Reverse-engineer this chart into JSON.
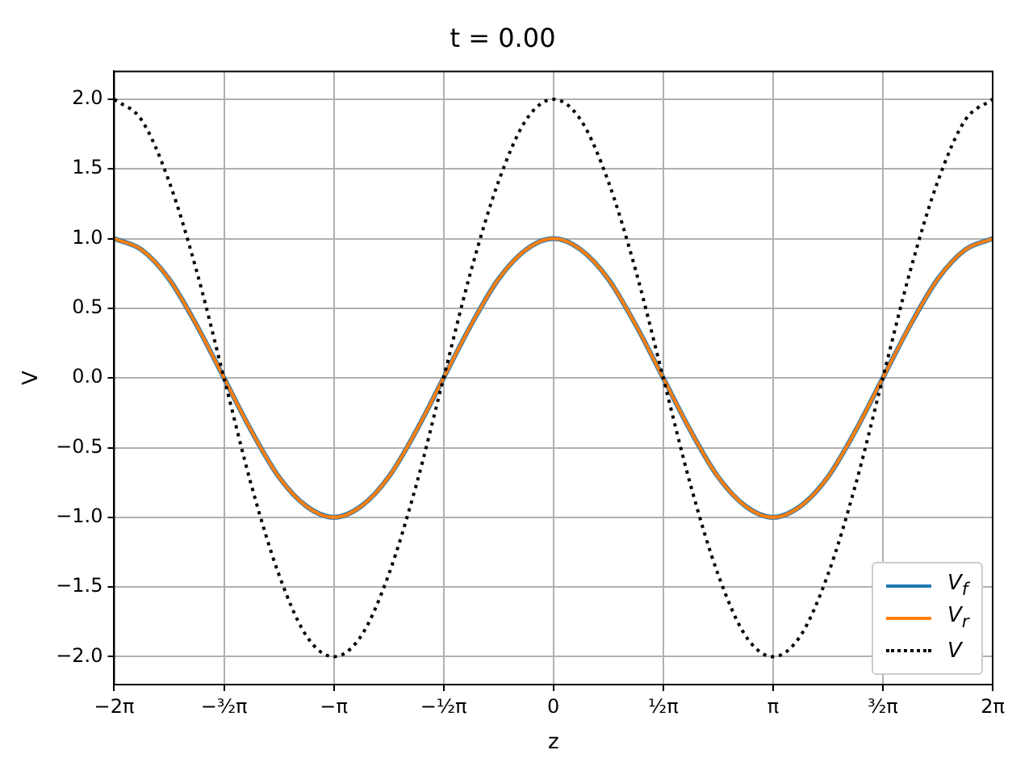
{
  "chart_data": {
    "type": "line",
    "title": "t = 0.00",
    "xlabel": "z",
    "ylabel": "V",
    "x": [
      -6.283,
      -5.89,
      -5.498,
      -5.105,
      -4.712,
      -4.32,
      -3.927,
      -3.534,
      -3.142,
      -2.749,
      -2.356,
      -1.963,
      -1.571,
      -1.178,
      -0.785,
      -0.393,
      0,
      0.393,
      0.785,
      1.178,
      1.571,
      1.963,
      2.356,
      2.749,
      3.142,
      3.534,
      3.927,
      4.32,
      4.712,
      5.105,
      5.498,
      5.89,
      6.283
    ],
    "series": [
      {
        "name": "V$_{f}$",
        "color": "#1f77b4",
        "line_style": "solid",
        "values": [
          1,
          0.92,
          0.71,
          0.38,
          0,
          -0.38,
          -0.71,
          -0.92,
          -1,
          -0.92,
          -0.71,
          -0.38,
          0,
          0.38,
          0.71,
          0.92,
          1,
          0.92,
          0.71,
          0.38,
          0,
          -0.38,
          -0.71,
          -0.92,
          -1,
          -0.92,
          -0.71,
          -0.38,
          0,
          0.38,
          0.71,
          0.92,
          1
        ]
      },
      {
        "name": "V$_{r}$",
        "color": "#ff7f0e",
        "line_style": "solid",
        "values": [
          1,
          0.92,
          0.71,
          0.38,
          0,
          -0.38,
          -0.71,
          -0.92,
          -1,
          -0.92,
          -0.71,
          -0.38,
          0,
          0.38,
          0.71,
          0.92,
          1,
          0.92,
          0.71,
          0.38,
          0,
          -0.38,
          -0.71,
          -0.92,
          -1,
          -0.92,
          -0.71,
          -0.38,
          0,
          0.38,
          0.71,
          0.92,
          1
        ]
      },
      {
        "name": "V",
        "color": "#000000",
        "line_style": "dotted",
        "values": [
          2,
          1.85,
          1.41,
          0.77,
          0,
          -0.77,
          -1.41,
          -1.85,
          -2,
          -1.85,
          -1.41,
          -0.77,
          0,
          0.77,
          1.41,
          1.85,
          2,
          1.85,
          1.41,
          0.77,
          0,
          -0.77,
          -1.41,
          -1.85,
          -2,
          -1.85,
          -1.41,
          -0.77,
          0,
          0.77,
          1.41,
          1.85,
          2
        ]
      }
    ],
    "xlim": [
      -6.283,
      6.283
    ],
    "xticks": [
      {
        "value": -6.283,
        "label": "−2π"
      },
      {
        "value": -4.712,
        "label": "−³⁄₂π"
      },
      {
        "value": -3.142,
        "label": "−π"
      },
      {
        "value": -1.571,
        "label": "−¹⁄₂π"
      },
      {
        "value": 0,
        "label": "0"
      },
      {
        "value": 1.571,
        "label": "¹⁄₂π"
      },
      {
        "value": 3.142,
        "label": "π"
      },
      {
        "value": 4.712,
        "label": "³⁄₂π"
      },
      {
        "value": 6.283,
        "label": "2π"
      }
    ],
    "ylim": [
      -2.2,
      2.2
    ],
    "yticks": [
      {
        "value": -2,
        "label": "−2.0"
      },
      {
        "value": -1.5,
        "label": "−1.5"
      },
      {
        "value": -1,
        "label": "−1.0"
      },
      {
        "value": -0.5,
        "label": "−0.5"
      },
      {
        "value": 0,
        "label": "0.0"
      },
      {
        "value": 0.5,
        "label": "0.5"
      },
      {
        "value": 1,
        "label": "1.0"
      },
      {
        "value": 1.5,
        "label": "1.5"
      },
      {
        "value": 2,
        "label": "2.0"
      }
    ],
    "grid": true,
    "legend": "bottom right",
    "marker": "none"
  }
}
